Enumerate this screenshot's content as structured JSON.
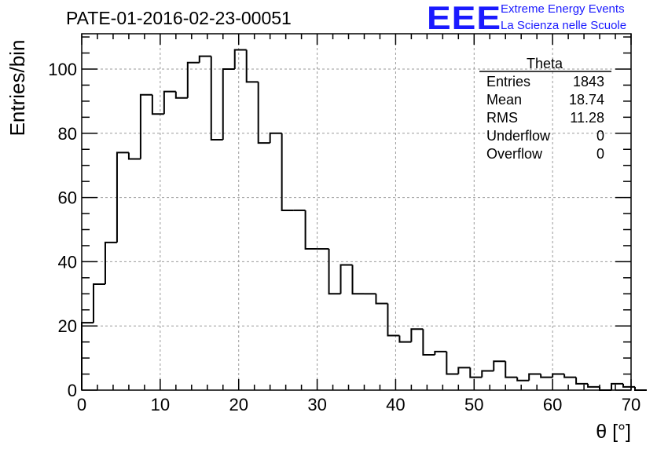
{
  "header": {
    "run_title": "PATE-01-2016-02-23-00051",
    "logo_text": "EEE",
    "logo_line1": "Extreme Energy Events",
    "logo_line2": "La Scienza nelle Scuole"
  },
  "stats_box": {
    "title": "Theta",
    "rows": [
      {
        "label": "Entries",
        "value": "1843"
      },
      {
        "label": "Mean",
        "value": "18.74"
      },
      {
        "label": "RMS",
        "value": "11.28"
      },
      {
        "label": "Underflow",
        "value": "0"
      },
      {
        "label": "Overflow",
        "value": "0"
      }
    ]
  },
  "chart_data": {
    "type": "histogram",
    "xlabel": "θ [°]",
    "ylabel": "Entries/bin",
    "xlim": [
      0,
      70
    ],
    "ylim": [
      0,
      111
    ],
    "xticks": [
      0,
      10,
      20,
      30,
      40,
      50,
      60,
      70
    ],
    "yticks": [
      0,
      20,
      40,
      60,
      80,
      100
    ],
    "grid": true,
    "bin_width": 1.5,
    "bin_start": 0,
    "values": [
      21,
      33,
      46,
      74,
      72,
      92,
      86,
      93,
      91,
      102,
      104,
      78,
      100,
      106,
      96,
      77,
      80,
      56,
      56,
      44,
      44,
      30,
      39,
      30,
      30,
      27,
      17,
      15,
      19,
      11,
      12,
      5,
      7,
      4,
      6,
      9,
      4,
      3,
      5,
      4,
      5,
      4,
      2,
      1,
      0,
      2,
      1,
      0
    ],
    "colors": {
      "line": "#000000",
      "grid": "#9a9a9a"
    }
  }
}
